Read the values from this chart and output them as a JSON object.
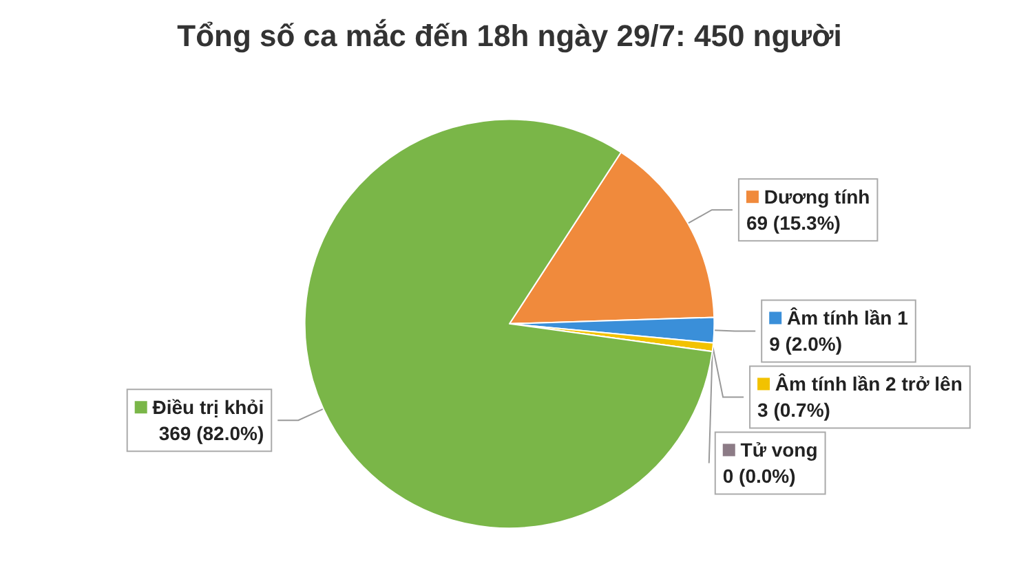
{
  "chart_data": {
    "type": "pie",
    "title": "Tổng số ca mắc đến 18h ngày 29/7: 450 người",
    "categories": [
      "Dương tính",
      "Âm tính lần 1",
      "Âm tính lần 2 trở lên",
      "Tử vong",
      "Điều trị khỏi"
    ],
    "values": [
      69,
      9,
      3,
      0,
      369
    ],
    "colors": [
      "#f08a3c",
      "#3a8fd9",
      "#f2c200",
      "#8c7b86",
      "#7ab648"
    ],
    "value_labels": [
      "69 (15.3%)",
      "9 (2.0%)",
      "3 (0.7%)",
      "0 (0.0%)",
      "369 (82.0%)"
    ],
    "legend": "right"
  }
}
